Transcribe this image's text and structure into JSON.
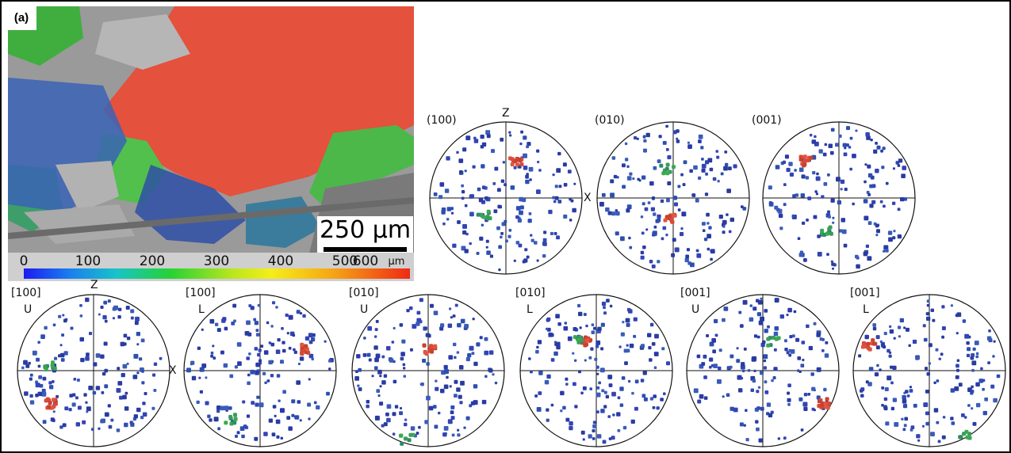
{
  "panel_label": "(a)",
  "scale_bar_label": "250 µm",
  "colour_legend": {
    "ticks": [
      "0",
      "100",
      "200",
      "300",
      "400",
      "500",
      "600"
    ],
    "unit": "µm",
    "colors": [
      "#1c1cf0",
      "#1a7ff0",
      "#18c3c9",
      "#27d234",
      "#b9e61f",
      "#f5ee18",
      "#f6a516",
      "#ee2a15"
    ]
  },
  "axis_labels": {
    "z": "Z",
    "x": "X"
  },
  "pole_figures_top": [
    {
      "plane": "(100)"
    },
    {
      "plane": "(010)"
    },
    {
      "plane": "(001)"
    }
  ],
  "pole_figures_bottom": [
    {
      "direction": "[100]",
      "hemisphere": "U"
    },
    {
      "direction": "[100]",
      "hemisphere": "L"
    },
    {
      "direction": "[010]",
      "hemisphere": "U"
    },
    {
      "direction": "[010]",
      "hemisphere": "L"
    },
    {
      "direction": "[001]",
      "hemisphere": "U"
    },
    {
      "direction": "[001]",
      "hemisphere": "L"
    }
  ]
}
